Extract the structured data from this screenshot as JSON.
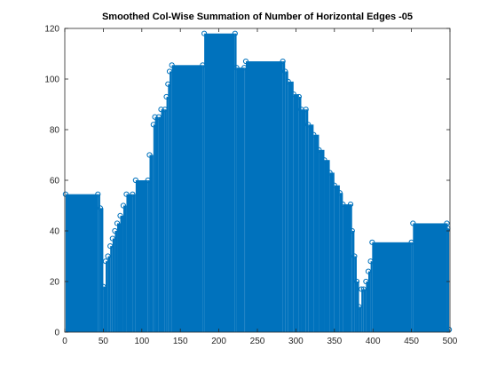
{
  "chart_data": {
    "type": "bar",
    "title": "Smoothed Col-Wise Summation of Number of Horizontal Edges -05",
    "xlabel": "",
    "ylabel": "",
    "xlim": [
      0,
      500
    ],
    "ylim": [
      0,
      120
    ],
    "xticks": [
      0,
      50,
      100,
      150,
      200,
      250,
      300,
      350,
      400,
      450,
      500
    ],
    "yticks": [
      0,
      20,
      40,
      60,
      80,
      100,
      120
    ],
    "grid": false,
    "legend": "none",
    "series_color": "#0072BD",
    "marker": "circle",
    "points": [
      [
        1,
        54.5
      ],
      [
        43,
        54.5
      ],
      [
        46,
        49
      ],
      [
        50,
        18
      ],
      [
        53,
        28
      ],
      [
        56,
        30
      ],
      [
        59,
        34
      ],
      [
        62,
        37
      ],
      [
        65,
        40
      ],
      [
        68,
        43
      ],
      [
        72,
        46
      ],
      [
        76,
        50
      ],
      [
        80,
        54.5
      ],
      [
        88,
        54.5
      ],
      [
        92,
        60
      ],
      [
        108,
        60
      ],
      [
        110,
        70
      ],
      [
        115,
        82
      ],
      [
        117,
        85
      ],
      [
        122,
        85
      ],
      [
        125,
        88
      ],
      [
        130,
        88
      ],
      [
        132,
        93
      ],
      [
        134,
        98
      ],
      [
        136,
        103
      ],
      [
        139,
        105.5
      ],
      [
        179,
        105.5
      ],
      [
        181,
        118
      ],
      [
        221,
        118
      ],
      [
        223,
        104.5
      ],
      [
        233,
        104.5
      ],
      [
        235,
        107
      ],
      [
        283,
        107
      ],
      [
        286,
        103
      ],
      [
        290,
        99
      ],
      [
        297,
        94
      ],
      [
        304,
        93
      ],
      [
        307,
        88
      ],
      [
        313,
        88
      ],
      [
        316,
        82
      ],
      [
        323,
        78
      ],
      [
        330,
        72
      ],
      [
        337,
        68
      ],
      [
        344,
        63
      ],
      [
        350,
        58
      ],
      [
        357,
        55
      ],
      [
        361,
        50.5
      ],
      [
        371,
        50.5
      ],
      [
        373,
        40
      ],
      [
        376,
        30
      ],
      [
        379,
        20
      ],
      [
        382,
        10
      ],
      [
        385,
        17
      ],
      [
        388,
        17
      ],
      [
        391,
        20
      ],
      [
        394,
        24
      ],
      [
        397,
        28
      ],
      [
        399,
        35.5
      ],
      [
        450,
        35.5
      ],
      [
        452,
        43
      ],
      [
        496,
        43
      ],
      [
        497,
        41
      ],
      [
        499,
        1
      ]
    ]
  }
}
